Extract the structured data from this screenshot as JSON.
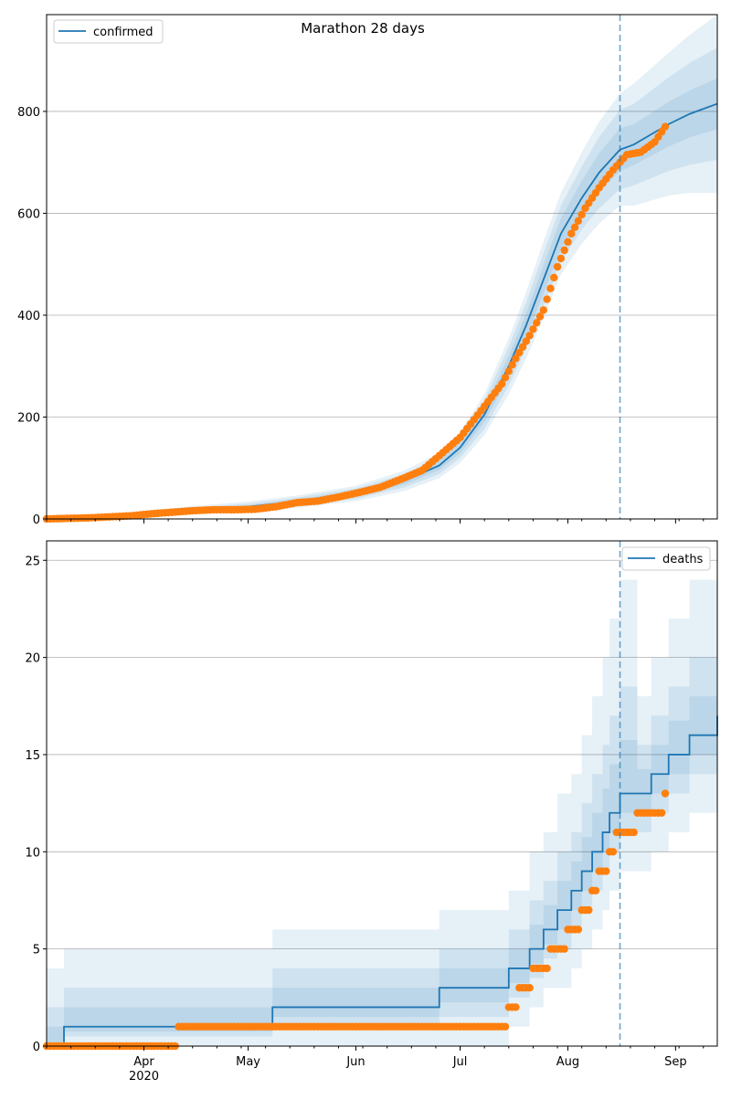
{
  "title": "Marathon 28 days",
  "colors": {
    "model": "#1f77b4",
    "observed": "#ff7f0e",
    "grid": "#b0b0b0"
  },
  "x_axis": {
    "start": "2020-03-04",
    "end": "2020-09-13",
    "month_ticks": [
      {
        "date": "2020-04-01",
        "label": "Apr",
        "sublabel": "2020"
      },
      {
        "date": "2020-05-01",
        "label": "May",
        "sublabel": ""
      },
      {
        "date": "2020-06-01",
        "label": "Jun",
        "sublabel": ""
      },
      {
        "date": "2020-07-01",
        "label": "Jul",
        "sublabel": ""
      },
      {
        "date": "2020-08-01",
        "label": "Aug",
        "sublabel": ""
      },
      {
        "date": "2020-09-01",
        "label": "Sep",
        "sublabel": ""
      }
    ],
    "forecast_start": "2020-08-16"
  },
  "chart_data": [
    {
      "type": "line",
      "name": "confirmed",
      "legend": "confirmed",
      "legend_position": "top-left",
      "ylim": [
        0,
        990
      ],
      "yticks": [
        0,
        200,
        400,
        600,
        800
      ],
      "grid": "y",
      "model": {
        "x": [
          "2020-03-04",
          "2020-03-18",
          "2020-04-01",
          "2020-04-15",
          "2020-05-01",
          "2020-05-15",
          "2020-06-01",
          "2020-06-15",
          "2020-06-25",
          "2020-07-01",
          "2020-07-08",
          "2020-07-15",
          "2020-07-20",
          "2020-07-25",
          "2020-07-30",
          "2020-08-05",
          "2020-08-10",
          "2020-08-16",
          "2020-08-20",
          "2020-08-25",
          "2020-08-30",
          "2020-09-05",
          "2020-09-13"
        ],
        "y": [
          0,
          4,
          10,
          17,
          24,
          34,
          50,
          75,
          105,
          140,
          205,
          300,
          380,
          470,
          560,
          630,
          680,
          725,
          735,
          755,
          775,
          795,
          815
        ],
        "band_widths": [
          [
            2,
            4,
            6,
            8,
            10,
            12,
            15,
            20,
            25,
            30,
            40,
            55,
            65,
            75,
            80,
            90,
            100,
            110,
            120,
            130,
            140,
            155,
            175
          ],
          [
            1,
            3,
            4,
            5,
            6,
            8,
            10,
            13,
            17,
            20,
            28,
            38,
            45,
            52,
            55,
            62,
            70,
            78,
            80,
            86,
            92,
            100,
            110
          ],
          [
            1,
            1,
            2,
            3,
            3,
            4,
            5,
            7,
            9,
            11,
            15,
            20,
            24,
            28,
            30,
            34,
            38,
            42,
            40,
            42,
            44,
            46,
            50
          ]
        ]
      },
      "observed": {
        "x": [
          "2020-03-04",
          "2020-03-10",
          "2020-03-16",
          "2020-03-22",
          "2020-03-28",
          "2020-04-03",
          "2020-04-09",
          "2020-04-15",
          "2020-04-21",
          "2020-04-27",
          "2020-05-03",
          "2020-05-09",
          "2020-05-15",
          "2020-05-21",
          "2020-05-27",
          "2020-06-02",
          "2020-06-08",
          "2020-06-14",
          "2020-06-20",
          "2020-06-26",
          "2020-07-01",
          "2020-07-05",
          "2020-07-09",
          "2020-07-13",
          "2020-07-17",
          "2020-07-21",
          "2020-07-25",
          "2020-07-29",
          "2020-08-02",
          "2020-08-06",
          "2020-08-10",
          "2020-08-14",
          "2020-08-18",
          "2020-08-22",
          "2020-08-26",
          "2020-08-29"
        ],
        "y": [
          0,
          1,
          2,
          4,
          6,
          10,
          13,
          16,
          18,
          18,
          19,
          24,
          32,
          35,
          43,
          52,
          62,
          78,
          95,
          130,
          160,
          195,
          230,
          265,
          315,
          360,
          410,
          495,
          560,
          610,
          650,
          685,
          715,
          720,
          740,
          770
        ]
      }
    },
    {
      "type": "line",
      "name": "deaths",
      "legend": "deaths",
      "legend_position": "top-right",
      "ylim": [
        0,
        26
      ],
      "yticks": [
        0,
        5,
        10,
        15,
        20,
        25
      ],
      "grid": "y",
      "model": {
        "step_x": [
          "2020-03-04",
          "2020-03-09",
          "2020-05-08",
          "2020-06-25",
          "2020-07-15",
          "2020-07-21",
          "2020-07-25",
          "2020-07-29",
          "2020-08-02",
          "2020-08-05",
          "2020-08-08",
          "2020-08-11",
          "2020-08-13",
          "2020-08-16",
          "2020-08-21",
          "2020-08-25",
          "2020-08-30",
          "2020-09-05",
          "2020-09-13"
        ],
        "step_y": [
          0,
          1,
          2,
          3,
          4,
          5,
          6,
          7,
          8,
          9,
          10,
          11,
          12,
          13,
          13,
          14,
          15,
          16,
          17
        ],
        "band_lower_outer": [
          0,
          0,
          0,
          0,
          1,
          2,
          3,
          3,
          4,
          5,
          6,
          7,
          8,
          9,
          9,
          10,
          11,
          12,
          13
        ],
        "band_upper_outer": [
          4,
          5,
          6,
          7,
          8,
          10,
          11,
          13,
          14,
          16,
          18,
          20,
          22,
          24,
          18,
          20,
          22,
          24,
          25
        ]
      },
      "observed": {
        "step_x": [
          "2020-03-04",
          "2020-04-11",
          "2020-07-15",
          "2020-07-18",
          "2020-07-22",
          "2020-07-27",
          "2020-08-01",
          "2020-08-05",
          "2020-08-08",
          "2020-08-10",
          "2020-08-13",
          "2020-08-15",
          "2020-08-21",
          "2020-08-29"
        ],
        "step_y": [
          0,
          1,
          2,
          3,
          4,
          5,
          6,
          7,
          8,
          9,
          10,
          11,
          12,
          13
        ]
      }
    }
  ]
}
